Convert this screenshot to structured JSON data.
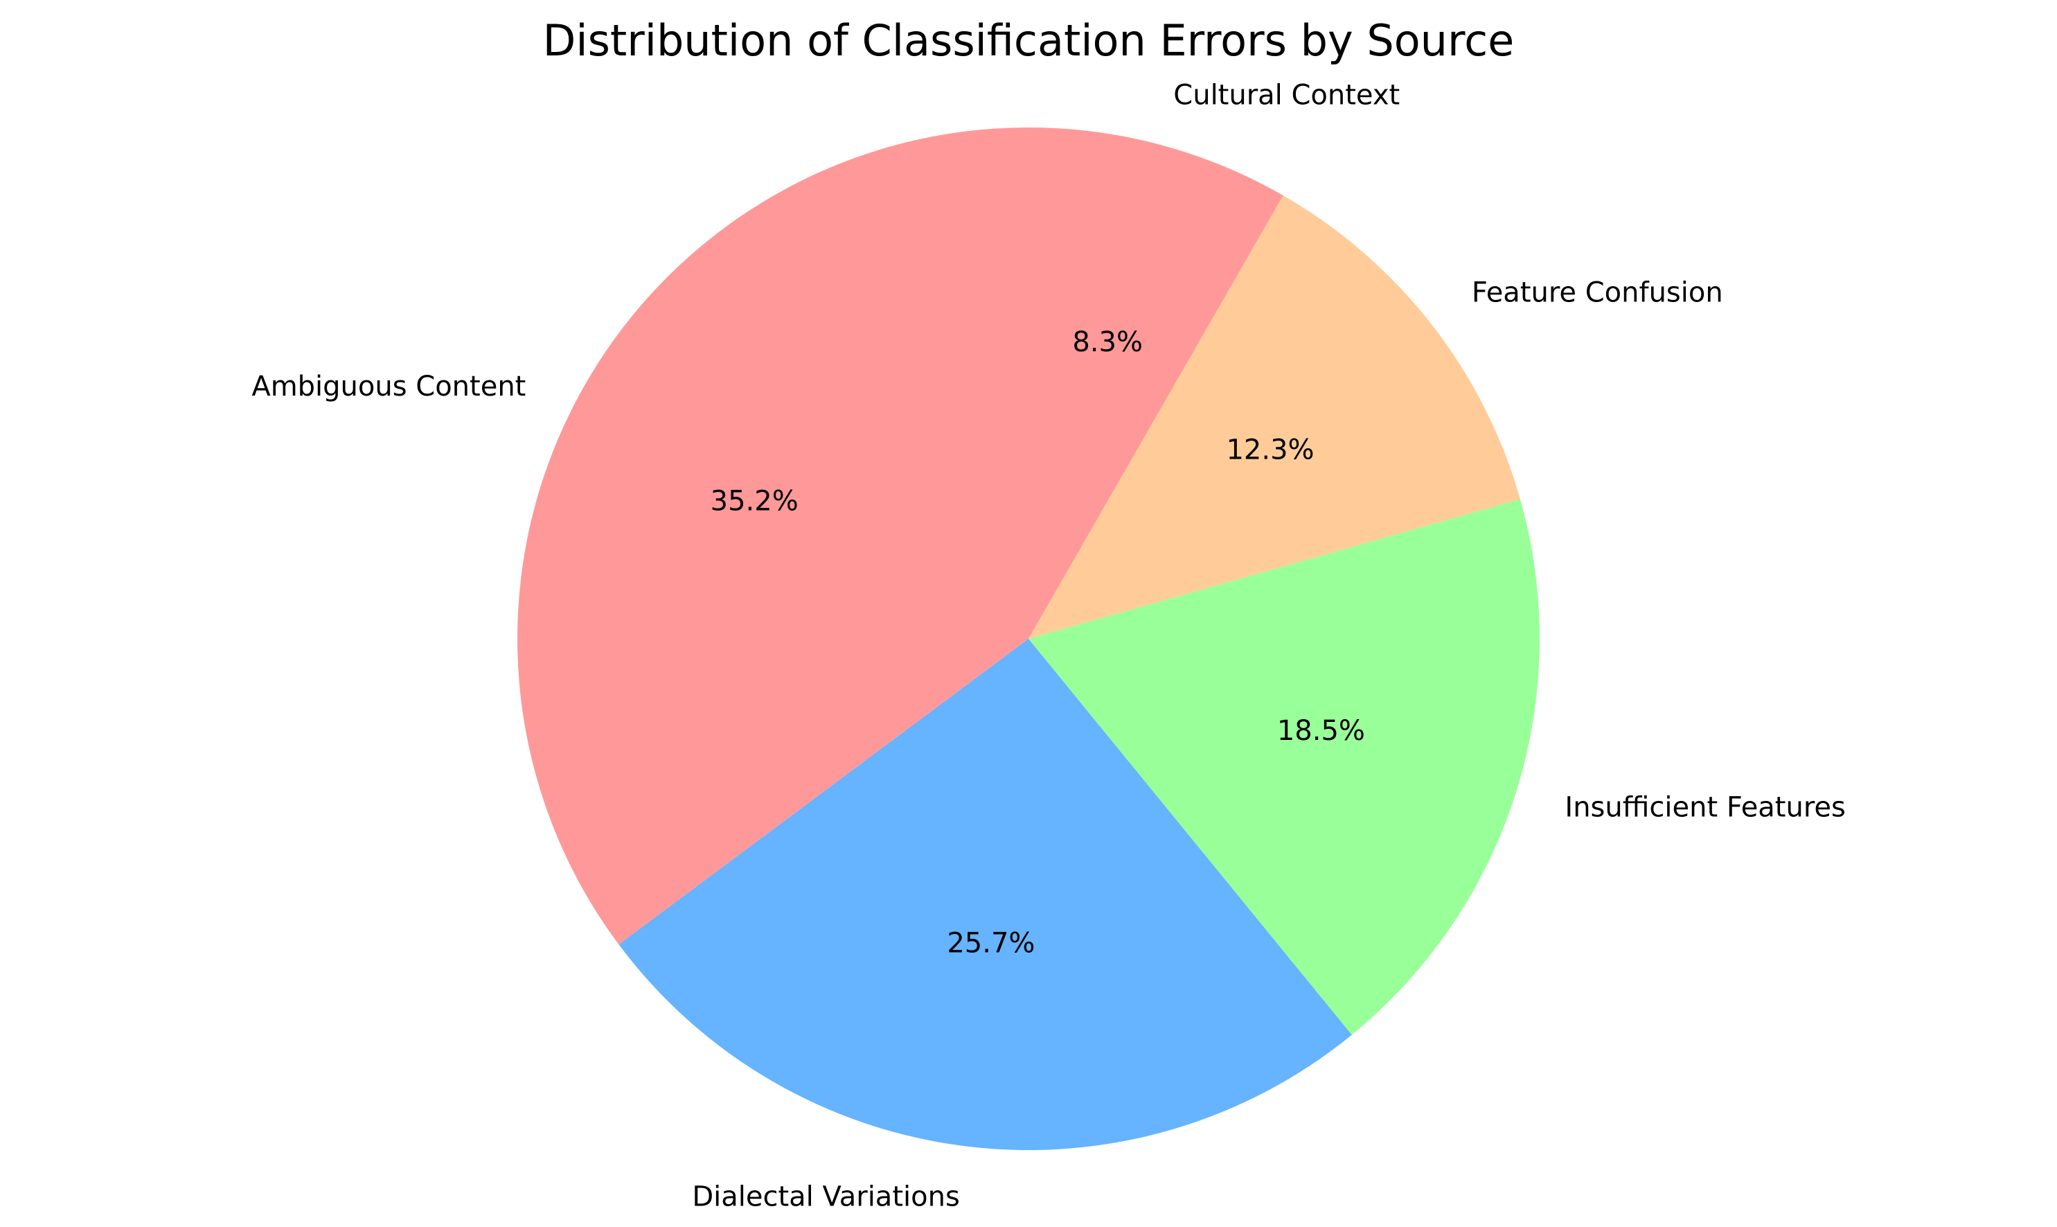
{
  "chart_data": {
    "type": "pie",
    "title": "Distribution of Classification Errors by Source",
    "categories": [
      "Ambiguous Content",
      "Dialectal Variations",
      "Insufficient Features",
      "Feature Confusion",
      "Cultural Context"
    ],
    "values": [
      35.2,
      25.7,
      18.5,
      12.3,
      8.3
    ],
    "percent_labels": [
      "35.2%",
      "25.7%",
      "18.5%",
      "12.3%",
      "8.3%"
    ],
    "colors": [
      "#ff9999",
      "#66b3ff",
      "#99ff99",
      "#ffcc99",
      "#ff9999"
    ],
    "start_angle_deg": 90,
    "direction": "counterclockwise",
    "legend": "none"
  }
}
